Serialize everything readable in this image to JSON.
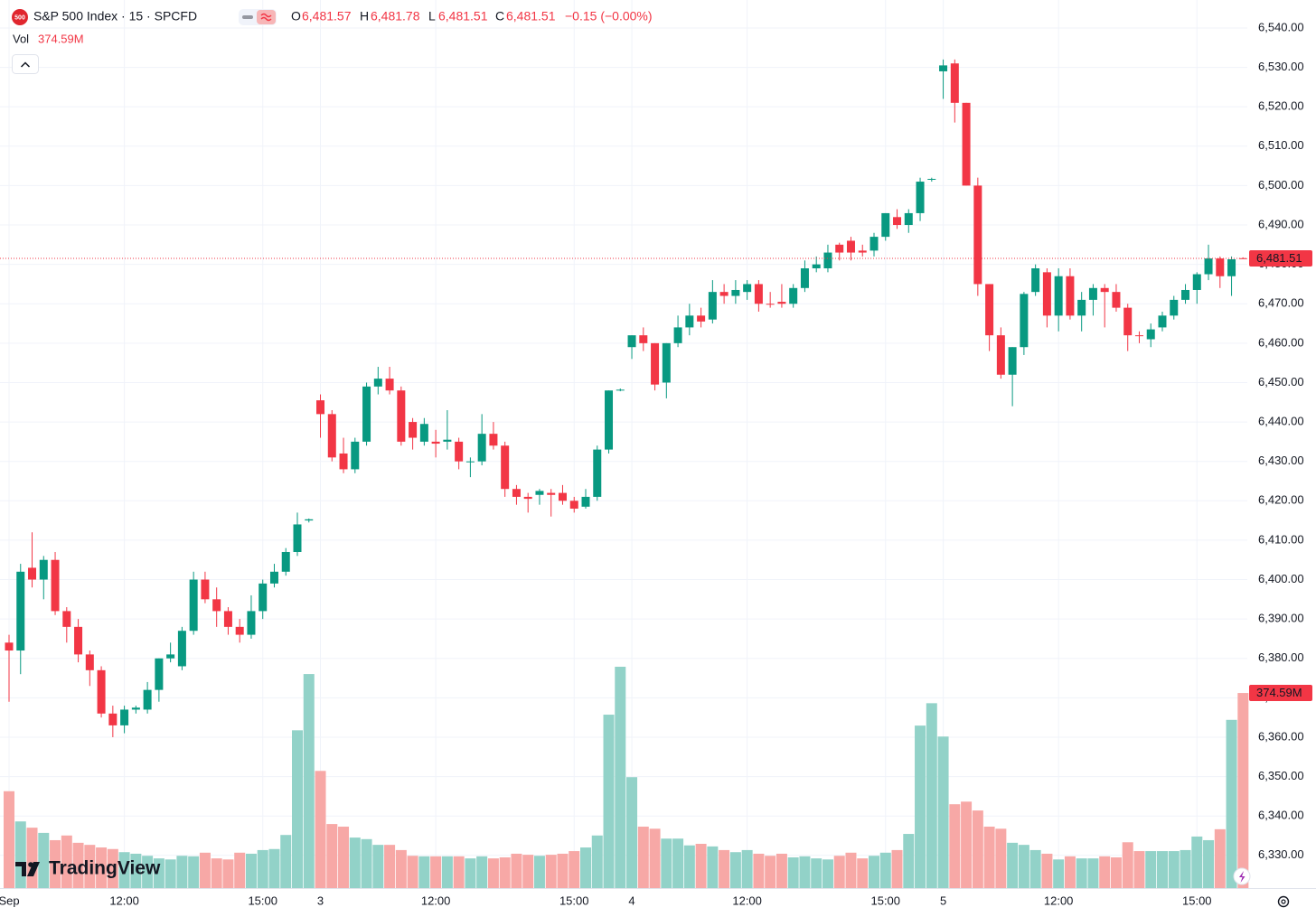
{
  "header": {
    "title": "S&P 500 Index · 15 · SPCFD",
    "logo": "500",
    "fields": [
      {
        "key": "O",
        "value": "6,481.57"
      },
      {
        "key": "H",
        "value": "6,481.78"
      },
      {
        "key": "L",
        "value": "6,481.51"
      },
      {
        "key": "C",
        "value": "6,481.51"
      }
    ],
    "change": "−0.15 (−0.00%)",
    "volume_key": "Vol"
  },
  "branding": "TradingView",
  "chart_data": {
    "type": "candlestick",
    "categories": [
      "Sep",
      null,
      null,
      null,
      null,
      null,
      null,
      null,
      null,
      null,
      "12:00",
      null,
      null,
      null,
      null,
      null,
      null,
      null,
      null,
      null,
      null,
      null,
      "15:00",
      null,
      null,
      null,
      null,
      "3",
      null,
      null,
      null,
      null,
      null,
      null,
      null,
      null,
      null,
      "12:00",
      null,
      null,
      null,
      null,
      null,
      null,
      null,
      null,
      null,
      null,
      null,
      "15:00",
      null,
      null,
      null,
      null,
      "4",
      null,
      null,
      null,
      null,
      null,
      null,
      null,
      null,
      null,
      "12:00",
      null,
      null,
      null,
      null,
      null,
      null,
      null,
      null,
      null,
      null,
      null,
      "15:00",
      null,
      null,
      null,
      null,
      "5",
      null,
      null,
      null,
      null,
      null,
      null,
      null,
      null,
      null,
      "12:00",
      null,
      null,
      null,
      null,
      null,
      null,
      null,
      null,
      null,
      null,
      null,
      "15:00",
      null,
      null,
      null,
      null
    ],
    "open": [
      6384,
      6382,
      6403,
      6400,
      6405,
      6392,
      6388,
      6381,
      6377,
      6366,
      6363,
      6367,
      6367,
      6372,
      6380,
      6378,
      6387,
      6400,
      6395,
      6392,
      6388,
      6386,
      6392,
      6399,
      6402,
      6407,
      6415,
      6445.5,
      6442,
      6432,
      6428,
      6435,
      6449,
      6451,
      6448,
      6440,
      6435,
      6435,
      6435,
      6435,
      6430,
      6430,
      6437,
      6434,
      6423,
      6421,
      6421.5,
      6422,
      6422,
      6420,
      6418.5,
      6421,
      6433,
      6448,
      6459,
      6462,
      6460,
      6450,
      6460,
      6464,
      6467,
      6466,
      6473,
      6472,
      6473,
      6475,
      6470,
      6470.5,
      6470,
      6474,
      6479,
      6479,
      6485,
      6486,
      6483.5,
      6483.5,
      6487,
      6492,
      6490,
      6493,
      6501.5,
      6529,
      6531,
      6521,
      6500,
      6475,
      6462,
      6452,
      6459,
      6473,
      6478,
      6467,
      6477,
      6467,
      6471,
      6474,
      6473,
      6469,
      6462,
      6461,
      6464,
      6467,
      6471,
      6473.5,
      6477.5,
      6481.5,
      6477,
      6481.57
    ],
    "high": [
      6386,
      6404,
      6412,
      6406,
      6407,
      6393,
      6390,
      6382,
      6378,
      6368,
      6368,
      6368,
      6374,
      6380,
      6384,
      6388,
      6402,
      6402,
      6398,
      6393,
      6390,
      6396,
      6400,
      6404,
      6408,
      6417,
      6415.5,
      6447,
      6443,
      6436,
      6436,
      6450,
      6454,
      6454,
      6449,
      6441,
      6441,
      6438,
      6443,
      6436,
      6431,
      6442,
      6440,
      6435,
      6424,
      6422,
      6423,
      6423,
      6424,
      6421,
      6423,
      6434,
      6448,
      6448.5,
      6462,
      6464,
      6460,
      6460,
      6467,
      6470,
      6469,
      6476,
      6475,
      6476,
      6476,
      6476,
      6473,
      6475,
      6475,
      6481,
      6482,
      6485,
      6485.5,
      6487,
      6485,
      6488,
      6493,
      6494,
      6494,
      6502,
      6502,
      6532,
      6532,
      6521,
      6502,
      6475,
      6464,
      6459,
      6473,
      6480,
      6479,
      6479,
      6479,
      6473,
      6475,
      6475,
      6475,
      6470,
      6463,
      6465,
      6468,
      6472,
      6475,
      6478,
      6485,
      6482,
      6482,
      6481.78
    ],
    "low": [
      6369,
      6376,
      6398,
      6395,
      6391,
      6384,
      6379,
      6373,
      6365,
      6360,
      6361,
      6366,
      6366,
      6369,
      6379,
      6377,
      6386,
      6394,
      6388,
      6386,
      6384,
      6385,
      6390,
      6398,
      6401,
      6406,
      6414.5,
      6436,
      6430,
      6427,
      6427,
      6434,
      6447,
      6447,
      6434,
      6433,
      6434,
      6431,
      6433,
      6428,
      6426,
      6429,
      6433,
      6421,
      6419,
      6417,
      6419,
      6416,
      6419,
      6417,
      6418,
      6420,
      6432,
      6447.8,
      6456,
      6458,
      6448,
      6446,
      6459,
      6462,
      6464,
      6465,
      6470,
      6470,
      6471,
      6468,
      6469,
      6469,
      6469,
      6473,
      6478,
      6478,
      6481,
      6481,
      6482,
      6482,
      6486,
      6489,
      6488,
      6491,
      6501,
      6522,
      6516,
      6500,
      6472,
      6458,
      6451,
      6444,
      6457,
      6472,
      6464,
      6463,
      6466,
      6463,
      6467,
      6464,
      6468,
      6458,
      6460,
      6459,
      6463,
      6466,
      6470,
      6470,
      6476,
      6474,
      6472,
      6481.51
    ],
    "close": [
      6382,
      6402,
      6400,
      6405,
      6392,
      6388,
      6381,
      6377,
      6366,
      6363,
      6367,
      6367.5,
      6372,
      6380,
      6381,
      6387,
      6400,
      6395,
      6392,
      6388,
      6386,
      6392,
      6399,
      6402,
      6407,
      6414,
      6415.3,
      6442,
      6431,
      6428,
      6435,
      6449,
      6451,
      6448,
      6435,
      6436,
      6439.5,
      6434.5,
      6435.5,
      6430,
      6430,
      6437,
      6434,
      6423,
      6421,
      6420.5,
      6422.5,
      6421.5,
      6420,
      6418,
      6421,
      6433,
      6448,
      6448.2,
      6462,
      6460,
      6449.5,
      6460,
      6464,
      6467,
      6465.5,
      6473,
      6472,
      6473.5,
      6475,
      6470,
      6469.8,
      6470,
      6474,
      6479,
      6480,
      6483,
      6483,
      6483,
      6483,
      6487,
      6493,
      6490,
      6493,
      6501,
      6501.7,
      6530.5,
      6521,
      6500,
      6475,
      6462,
      6452,
      6459,
      6472.5,
      6479,
      6467,
      6477,
      6467,
      6471,
      6474,
      6473,
      6469,
      6462,
      6461.8,
      6463.5,
      6467,
      6471,
      6473.5,
      6477.5,
      6481.5,
      6477,
      6481.3,
      6481.51
    ],
    "volume": [
      186,
      128,
      116,
      106,
      92,
      101,
      87,
      83,
      78,
      75,
      69,
      66,
      62,
      57,
      55,
      62,
      61,
      68,
      57,
      55,
      68,
      66,
      73,
      75,
      102,
      303,
      411,
      225,
      123,
      118,
      97,
      94,
      83,
      83,
      73,
      62,
      61,
      61,
      61,
      61,
      57,
      61,
      57,
      59,
      66,
      64,
      62,
      64,
      66,
      71,
      78,
      101,
      333,
      425,
      213,
      118,
      114,
      95,
      95,
      82,
      85,
      80,
      73,
      69,
      73,
      66,
      62,
      66,
      59,
      61,
      57,
      55,
      62,
      68,
      57,
      62,
      68,
      73,
      104,
      312,
      355,
      291,
      161,
      166,
      149,
      118,
      114,
      87,
      83,
      73,
      66,
      55,
      61,
      57,
      57,
      61,
      59,
      88,
      71,
      71,
      71,
      71,
      73,
      99,
      92,
      113,
      323,
      374.59
    ],
    "volume_labels": [
      null,
      null,
      null,
      null,
      null,
      null,
      null,
      null,
      null,
      null,
      null,
      null,
      null,
      null,
      null,
      null,
      null,
      null,
      null,
      null,
      null,
      null,
      null,
      null,
      null,
      null,
      null,
      null,
      null,
      null,
      null,
      null,
      null,
      null,
      null,
      null,
      null,
      null,
      null,
      null,
      null,
      null,
      null,
      null,
      null,
      null,
      null,
      null,
      null,
      null,
      null,
      null,
      null,
      null,
      null,
      null,
      null,
      null,
      null,
      null,
      null,
      null,
      null,
      null,
      null,
      null,
      null,
      null,
      null,
      null,
      null,
      null,
      null,
      null,
      null,
      null,
      null,
      null,
      null,
      null,
      null,
      null,
      null,
      null,
      null,
      null,
      null,
      null,
      null,
      null,
      null,
      null,
      null,
      null,
      null,
      null,
      null,
      null,
      null,
      null,
      null,
      null,
      null,
      null,
      null,
      null,
      null,
      "374.59M"
    ],
    "up_color": "#089981",
    "down_color": "#f23645",
    "volume_up_color": "#92d2c8",
    "volume_down_color": "#f7a8a6",
    "last_price": {
      "value": 6481.51,
      "label": "6,481.51"
    },
    "ylim": [
      6321.7,
      6547.1
    ],
    "yticks": [
      {
        "value": 6330,
        "label": "6,330.00"
      },
      {
        "value": 6340,
        "label": "6,340.00"
      },
      {
        "value": 6350,
        "label": "6,350.00"
      },
      {
        "value": 6360,
        "label": "6,360.00"
      },
      {
        "value": 6370,
        "label": "6,370.00"
      },
      {
        "value": 6380,
        "label": "6,380.00"
      },
      {
        "value": 6390,
        "label": "6,390.00"
      },
      {
        "value": 6400,
        "label": "6,400.00"
      },
      {
        "value": 6410,
        "label": "6,410.00"
      },
      {
        "value": 6420,
        "label": "6,420.00"
      },
      {
        "value": 6430,
        "label": "6,430.00"
      },
      {
        "value": 6440,
        "label": "6,440.00"
      },
      {
        "value": 6450,
        "label": "6,450.00"
      },
      {
        "value": 6460,
        "label": "6,460.00"
      },
      {
        "value": 6470,
        "label": "6,470.00"
      },
      {
        "value": 6480,
        "label": "6,480.00"
      },
      {
        "value": 6490,
        "label": "6,490.00"
      },
      {
        "value": 6500,
        "label": "6,500.00"
      },
      {
        "value": 6510,
        "label": "6,510.00"
      },
      {
        "value": 6520,
        "label": "6,520.00"
      },
      {
        "value": 6530,
        "label": "6,530.00"
      },
      {
        "value": 6540,
        "label": "6,540.00"
      }
    ],
    "grid": true
  }
}
